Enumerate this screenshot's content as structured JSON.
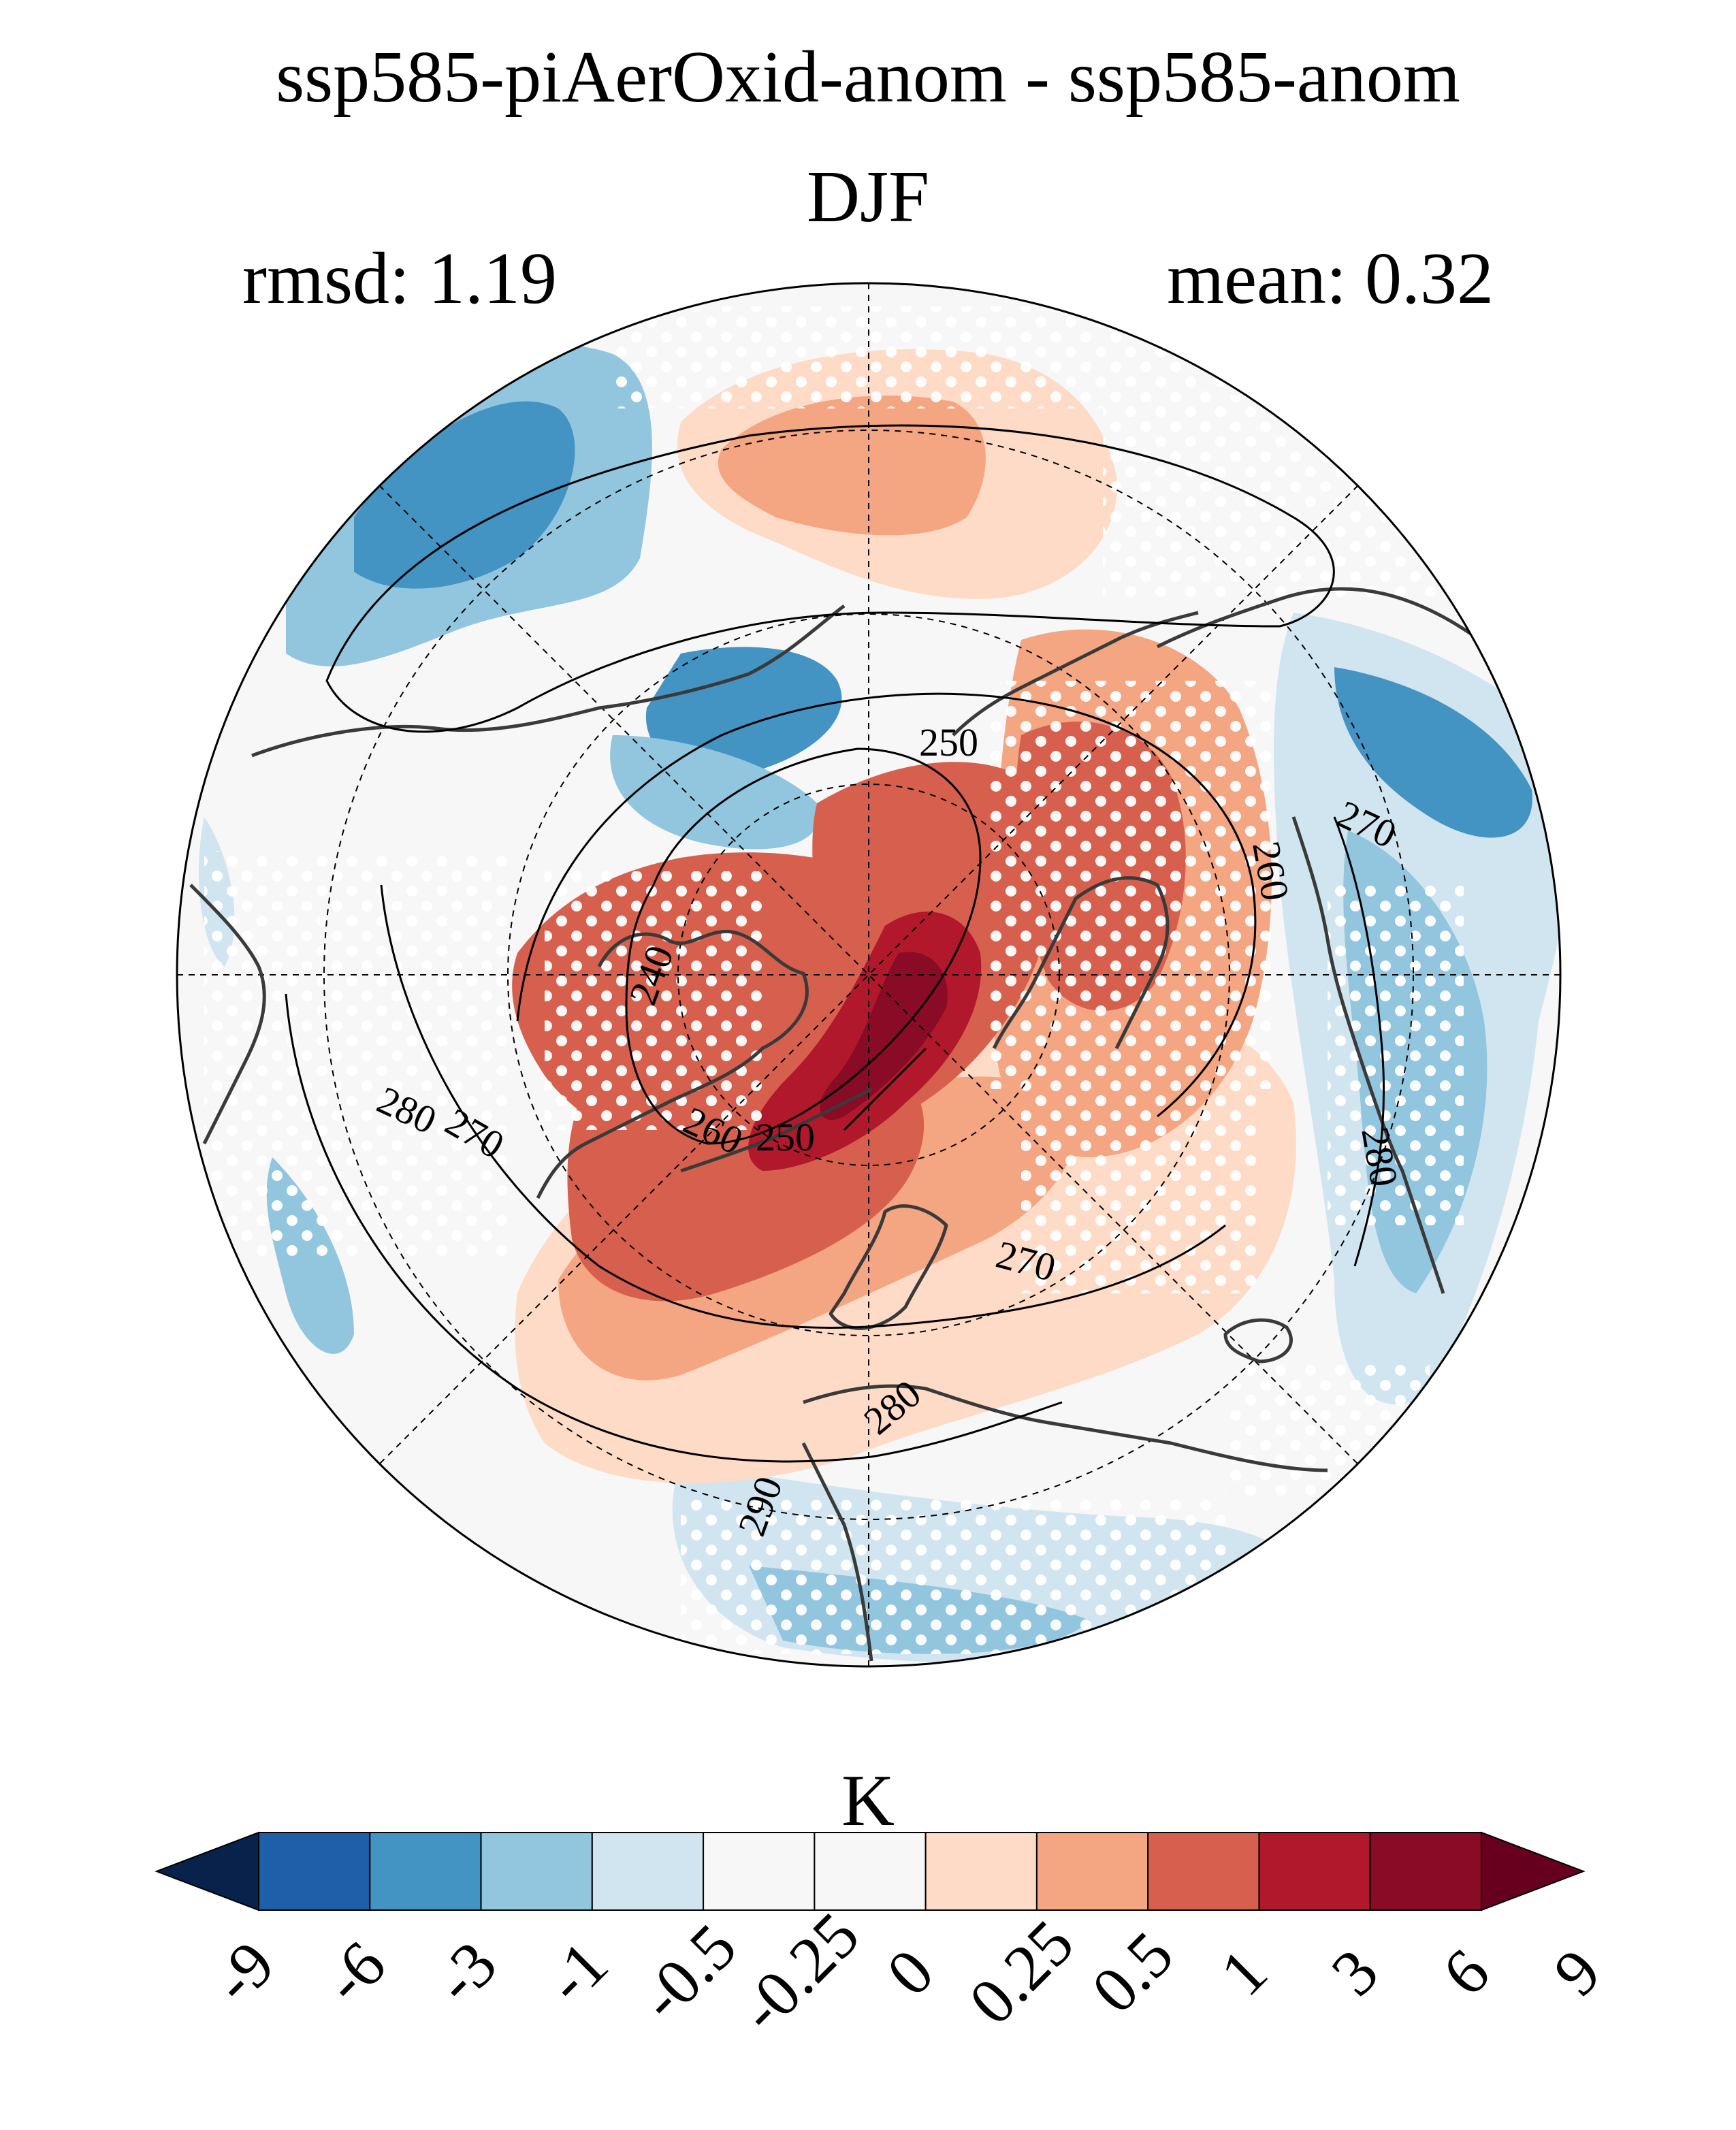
{
  "header": {
    "title": "ssp585-piAerOxid-anom - ssp585-anom",
    "season": "DJF",
    "rmsd": "rmsd: 1.19",
    "mean": "mean: 0.32"
  },
  "map": {
    "projection": "north polar stereographic",
    "field": "temperature anomaly difference (filled), climatology (contours)",
    "stippling": "white dots",
    "contour_labels": [
      "250",
      "260",
      "270",
      "240",
      "280",
      "270",
      "260",
      "250",
      "270",
      "280",
      "280",
      "290"
    ]
  },
  "colorbar": {
    "units": "K",
    "tick_labels": [
      "-9",
      "-6",
      "-3",
      "-1",
      "-0.5",
      "-0.25",
      "0",
      "0.25",
      "0.5",
      "1",
      "3",
      "6",
      "9"
    ],
    "colors": [
      "#08224c",
      "#1f5ea8",
      "#4393c3",
      "#92c5de",
      "#d1e5f0",
      "#f7f7f7",
      "#f7f7f7",
      "#fddbc7",
      "#f4a582",
      "#d6604d",
      "#b2182b",
      "#8a0b25",
      "#67001f"
    ]
  },
  "chart_data": {
    "type": "heatmap",
    "title": "ssp585-piAerOxid-anom - ssp585-anom",
    "subtitle": "DJF",
    "stats": {
      "rmsd": 1.19,
      "mean": 0.32
    },
    "colorbar_levels": [
      -9,
      -6,
      -3,
      -1,
      -0.5,
      -0.25,
      0,
      0.25,
      0.5,
      1,
      3,
      6,
      9
    ],
    "colorbar_units": "K",
    "contour_levels": [
      240,
      250,
      260,
      270,
      280,
      290
    ]
  }
}
